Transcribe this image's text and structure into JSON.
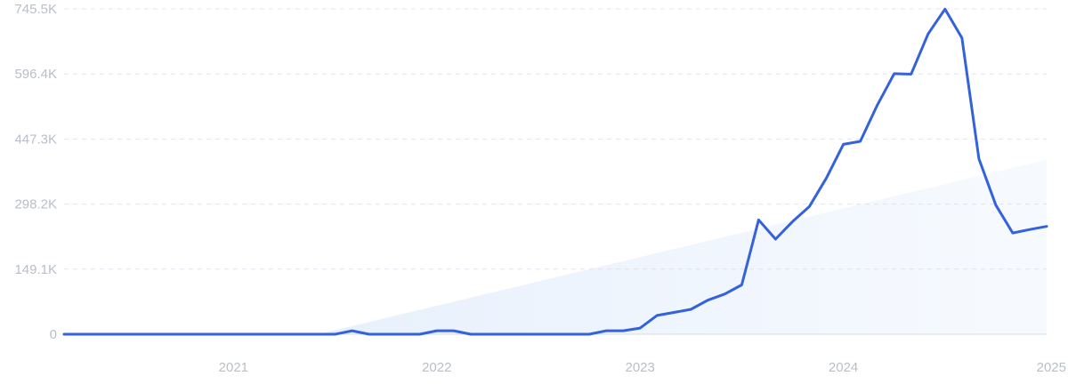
{
  "chart_data": {
    "type": "line",
    "title": "",
    "xlabel": "",
    "ylabel": "",
    "x_range": [
      "2020-03",
      "2025-01"
    ],
    "ylim": [
      0,
      745.5
    ],
    "y_unit": "K",
    "y_ticks": [
      {
        "value": 0,
        "label": "0"
      },
      {
        "value": 149.1,
        "label": "149.1K"
      },
      {
        "value": 298.2,
        "label": "298.2K"
      },
      {
        "value": 447.3,
        "label": "447.3K"
      },
      {
        "value": 596.4,
        "label": "596.4K"
      },
      {
        "value": 745.5,
        "label": "745.5K"
      }
    ],
    "x_ticks": [
      {
        "value": "2021-01",
        "label": "2021"
      },
      {
        "value": "2022-01",
        "label": "2022"
      },
      {
        "value": "2023-01",
        "label": "2023"
      },
      {
        "value": "2024-01",
        "label": "2024"
      },
      {
        "value": "2025-01",
        "label": "2025"
      }
    ],
    "grid": true,
    "colors": {
      "line": "#3462dc",
      "trend_fill": "#e8f1fd",
      "grid": "#dfe4ec",
      "tick_text": "#b8bfca"
    },
    "trend": {
      "start": [
        "2021-06",
        0
      ],
      "end": [
        "2025-01",
        400
      ]
    },
    "series": [
      {
        "points": [
          [
            "2020-03",
            0
          ],
          [
            "2020-06",
            0
          ],
          [
            "2020-09",
            0
          ],
          [
            "2020-12",
            0
          ],
          [
            "2021-03",
            0
          ],
          [
            "2021-06",
            0
          ],
          [
            "2021-07",
            0
          ],
          [
            "2021-08",
            8
          ],
          [
            "2021-09",
            0
          ],
          [
            "2021-12",
            0
          ],
          [
            "2022-01",
            8
          ],
          [
            "2022-02",
            8
          ],
          [
            "2022-03",
            0
          ],
          [
            "2022-06",
            0
          ],
          [
            "2022-09",
            0
          ],
          [
            "2022-10",
            0
          ],
          [
            "2022-11",
            8
          ],
          [
            "2022-12",
            8
          ],
          [
            "2023-01",
            14
          ],
          [
            "2023-02",
            43
          ],
          [
            "2023-03",
            50
          ],
          [
            "2023-04",
            57
          ],
          [
            "2023-05",
            78
          ],
          [
            "2023-06",
            92
          ],
          [
            "2023-07",
            113
          ],
          [
            "2023-08",
            262
          ],
          [
            "2023-09",
            218
          ],
          [
            "2023-10",
            258
          ],
          [
            "2023-11",
            293
          ],
          [
            "2023-12",
            358
          ],
          [
            "2024-01",
            435
          ],
          [
            "2024-02",
            442
          ],
          [
            "2024-03",
            525
          ],
          [
            "2024-04",
            597
          ],
          [
            "2024-05",
            596
          ],
          [
            "2024-06",
            688
          ],
          [
            "2024-07",
            745
          ],
          [
            "2024-08",
            679
          ],
          [
            "2024-09",
            402
          ],
          [
            "2024-10",
            296
          ],
          [
            "2024-11",
            232
          ],
          [
            "2024-12",
            240
          ],
          [
            "2025-01",
            247
          ]
        ]
      }
    ]
  }
}
